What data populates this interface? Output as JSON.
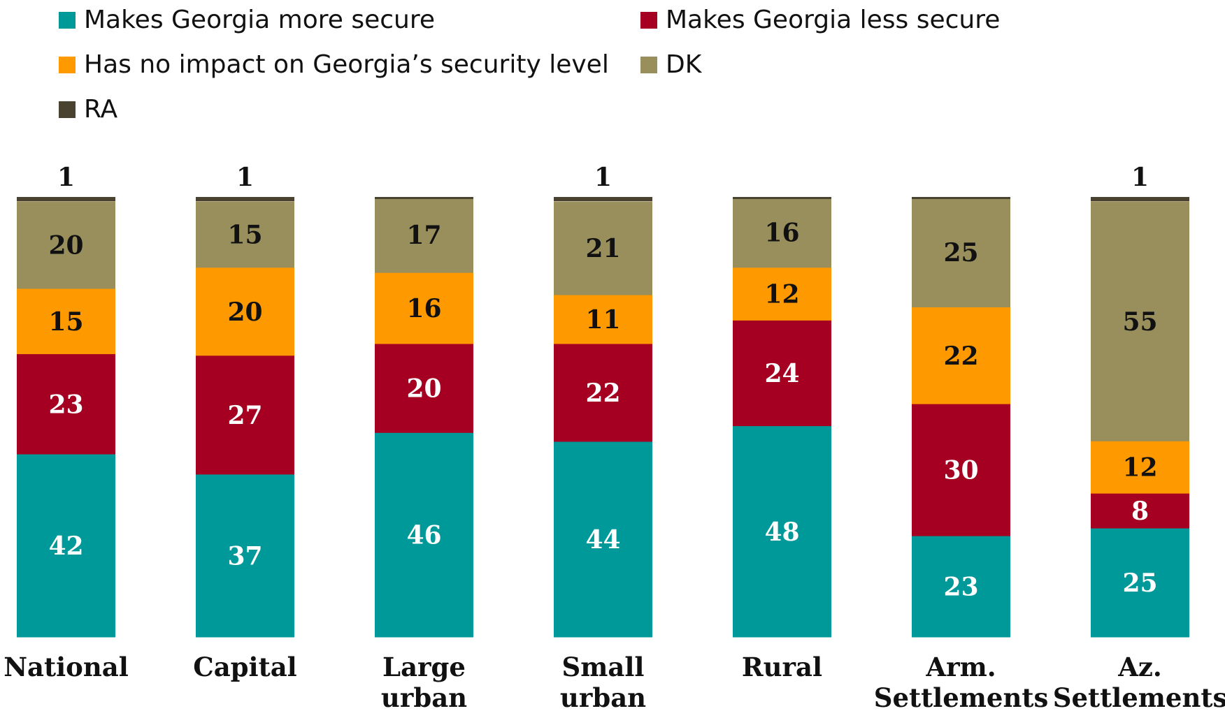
{
  "chart_data": {
    "type": "bar",
    "stacked": true,
    "orientation": "vertical",
    "categories": [
      [
        "National"
      ],
      [
        "Capital"
      ],
      [
        "Large",
        "urban"
      ],
      [
        "Small",
        "urban"
      ],
      [
        "Rural"
      ],
      [
        "Arm.",
        "Settlements"
      ],
      [
        "Az.",
        "Settlements"
      ]
    ],
    "series": [
      {
        "name": "Makes Georgia more secure",
        "color": "#009999",
        "label_color": "#ffffff",
        "values": [
          42,
          37,
          46,
          44,
          48,
          23,
          25
        ]
      },
      {
        "name": "Makes Georgia less secure",
        "color": "#a50021",
        "label_color": "#ffffff",
        "values": [
          23,
          27,
          20,
          22,
          24,
          30,
          8
        ]
      },
      {
        "name": "Has no impact on Georgia’s security level",
        "color": "#ff9900",
        "label_color": "#111111",
        "values": [
          15,
          20,
          16,
          11,
          12,
          22,
          12
        ]
      },
      {
        "name": "DK",
        "color": "#998f5c",
        "label_color": "#111111",
        "values": [
          20,
          15,
          17,
          21,
          16,
          25,
          55
        ]
      },
      {
        "name": "RA",
        "color": "#4a4230",
        "label_color": "#111111",
        "values": [
          1,
          1,
          0,
          1,
          0,
          0,
          1
        ]
      }
    ],
    "ylim": [
      0,
      100
    ],
    "legend_position": "top",
    "grid": false
  }
}
